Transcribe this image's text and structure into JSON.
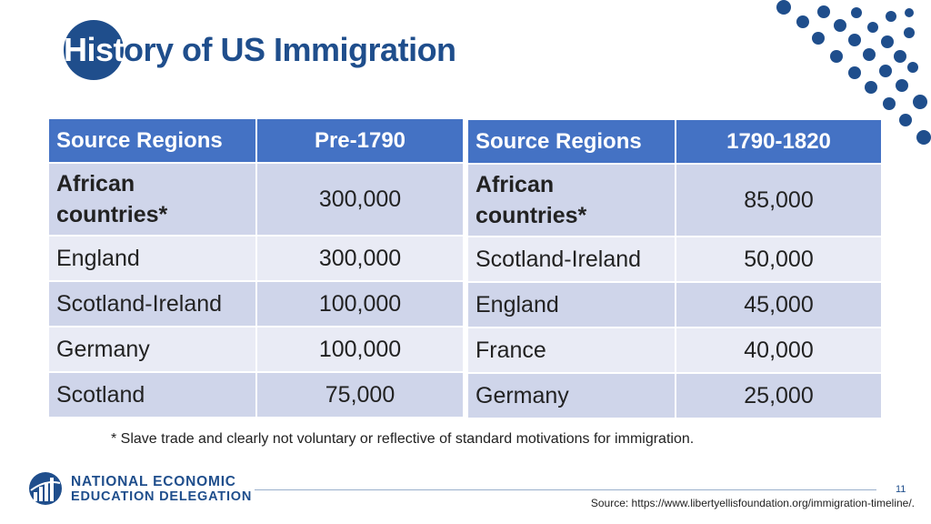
{
  "slide": {
    "title_in_circle": "Hist",
    "title_rest": "ory of US Immigration",
    "page_number": "11",
    "footnote": "* Slave trade and clearly not voluntary or reflective of standard motivations for immigration.",
    "source": "Source: https://www.libertyellisfoundation.org/immigration-timeline/."
  },
  "logo": {
    "line1": "NATIONAL ECONOMIC",
    "line2": "EDUCATION DELEGATION",
    "icon": "globe-logo-icon"
  },
  "colors": {
    "brand_blue": "#1f4e8c",
    "header_blue": "#4472c4",
    "row_dark": "#cfd5ea",
    "row_light": "#e9ebf5"
  },
  "tables": [
    {
      "headers": [
        "Source Regions",
        "Pre-1790"
      ],
      "rows": [
        {
          "region": "African countries*",
          "value": "300,000"
        },
        {
          "region": "England",
          "value": "300,000"
        },
        {
          "region": "Scotland-Ireland",
          "value": "100,000"
        },
        {
          "region": "Germany",
          "value": "100,000"
        },
        {
          "region": "Scotland",
          "value": "75,000"
        }
      ]
    },
    {
      "headers": [
        "Source Regions",
        "1790-1820"
      ],
      "rows": [
        {
          "region": "African countries*",
          "value": "85,000"
        },
        {
          "region": "Scotland-Ireland",
          "value": "50,000"
        },
        {
          "region": "England",
          "value": "45,000"
        },
        {
          "region": "France",
          "value": "40,000"
        },
        {
          "region": "Germany",
          "value": "25,000"
        }
      ]
    }
  ]
}
